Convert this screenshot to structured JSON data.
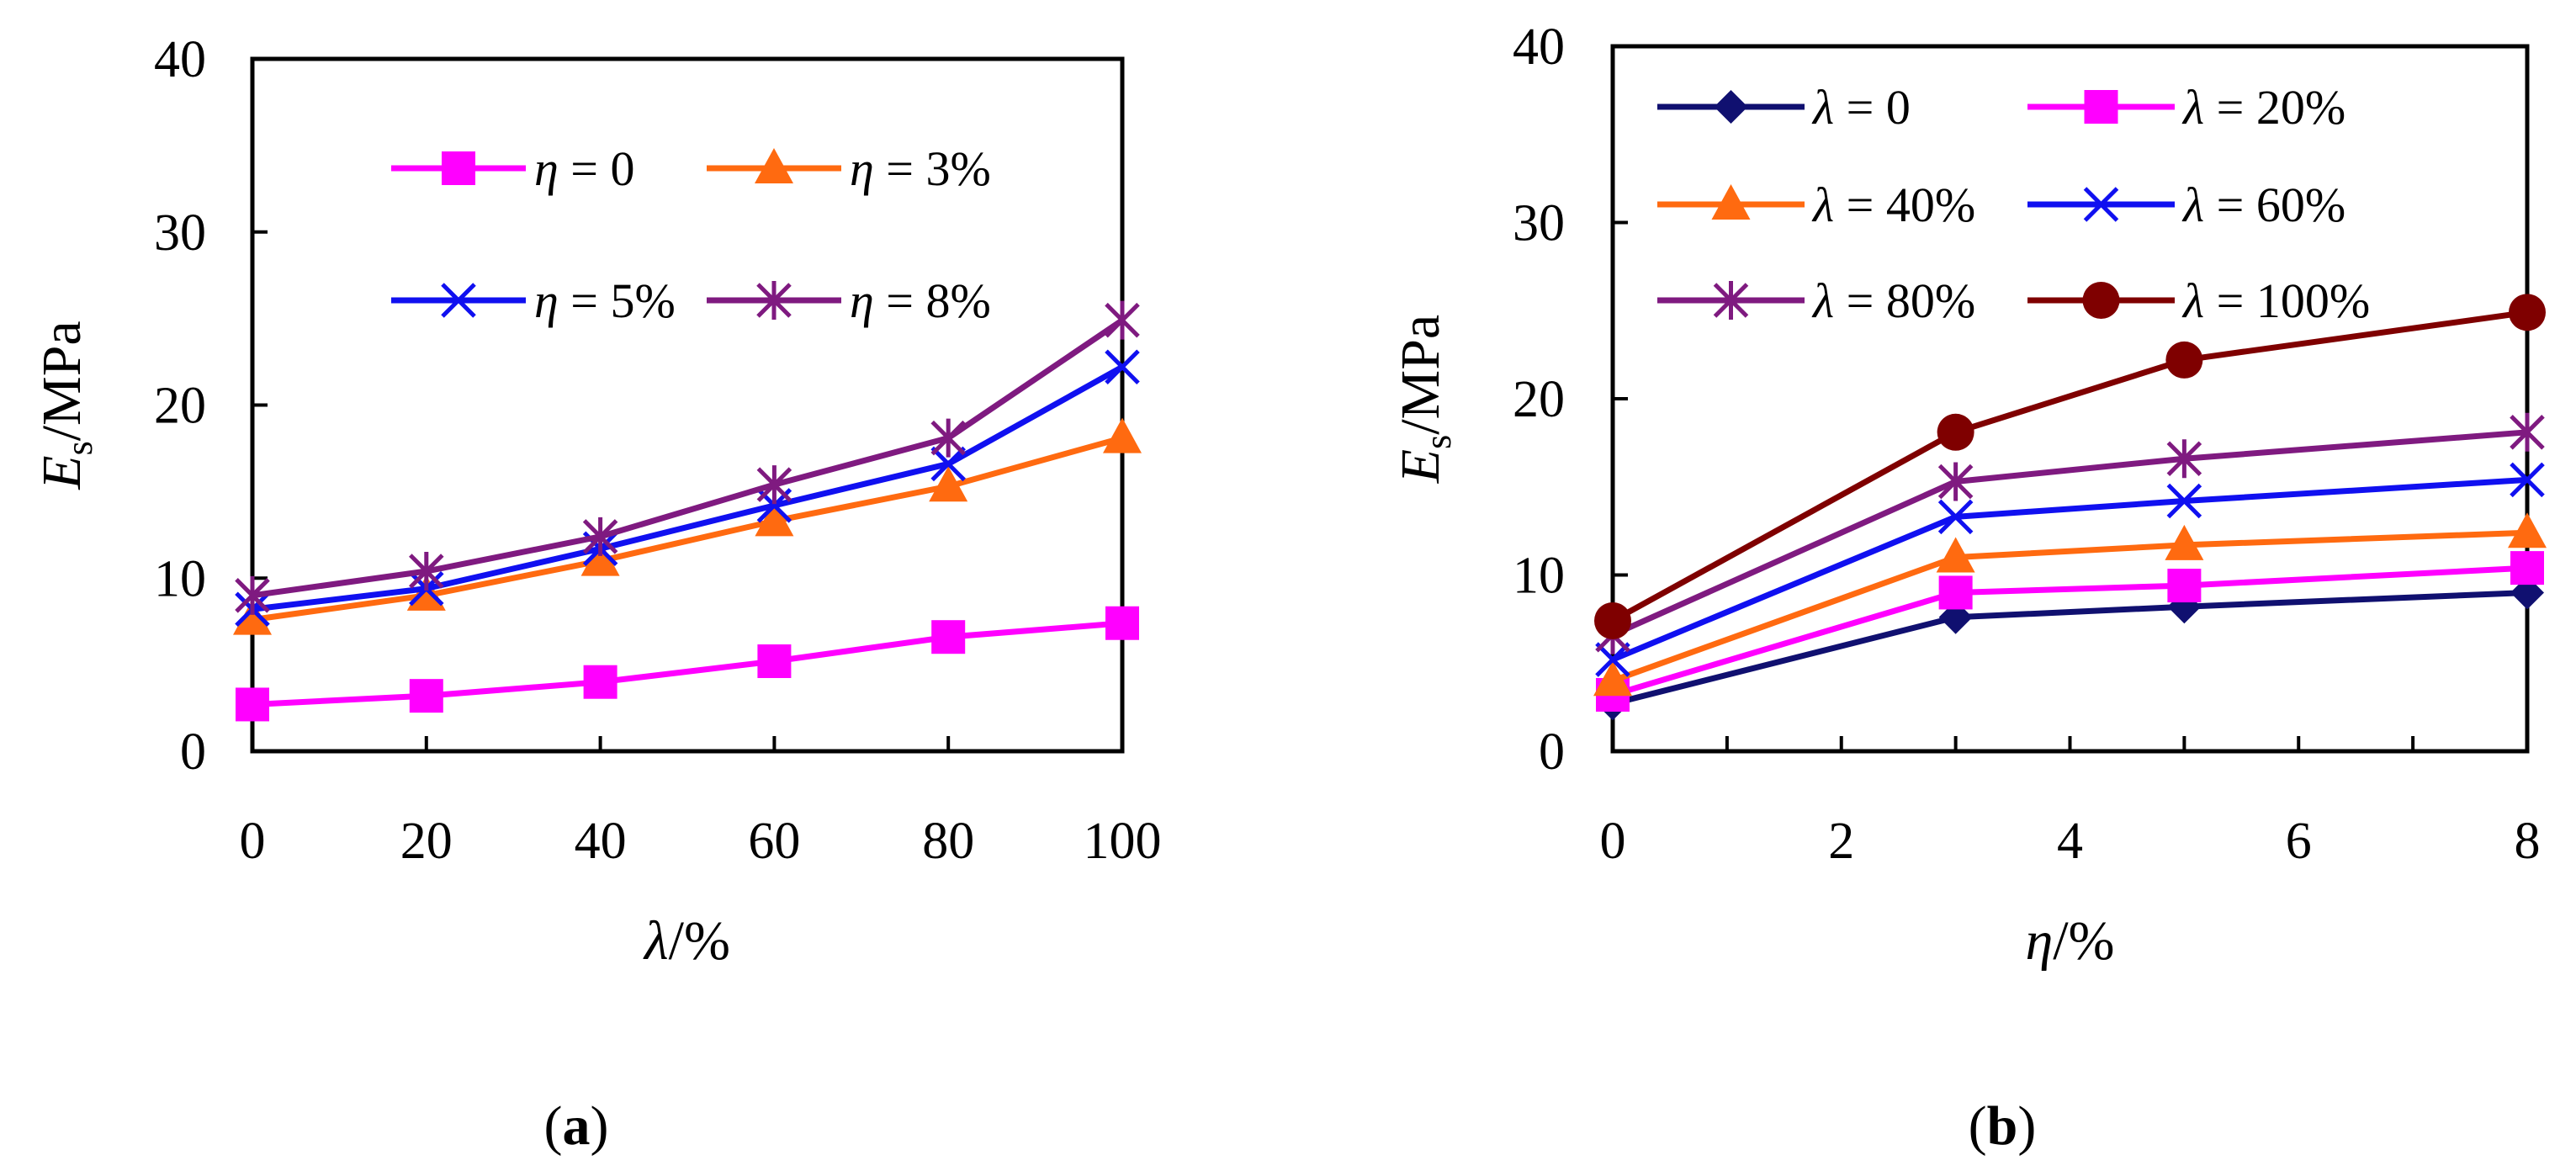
{
  "chart_data": [
    {
      "type": "line",
      "panel_label": "a",
      "title": "",
      "xlabel": "λ/%",
      "ylabel_main": "E",
      "ylabel_sub": "s",
      "ylabel_rest": "/MPa",
      "x": [
        0,
        20,
        40,
        60,
        80,
        100
      ],
      "xlim": [
        0,
        100
      ],
      "ylim": [
        0,
        40
      ],
      "xticks": [
        "0",
        "20",
        "40",
        "60",
        "80",
        "100"
      ],
      "yticks": [
        "0",
        "10",
        "20",
        "30",
        "40"
      ],
      "legend_position": "top-left inside",
      "series": [
        {
          "sym": "η",
          "rest": " = 0",
          "name": "η = 0",
          "color": "#FF00FF",
          "marker": "square",
          "values": [
            2.7,
            3.2,
            4.0,
            5.2,
            6.6,
            7.4
          ]
        },
        {
          "sym": "η",
          "rest": " = 3%",
          "name": "η = 3%",
          "color": "#FF6A10",
          "marker": "triangle",
          "values": [
            7.6,
            9.0,
            11.0,
            13.3,
            15.3,
            18.1
          ]
        },
        {
          "sym": "η",
          "rest": " = 5%",
          "name": "η = 5%",
          "color": "#1010F0",
          "marker": "x",
          "values": [
            8.2,
            9.4,
            11.7,
            14.2,
            16.6,
            22.2
          ]
        },
        {
          "sym": "η",
          "rest": " = 8%",
          "name": "η = 8%",
          "color": "#7F1A80",
          "marker": "star",
          "values": [
            9.0,
            10.4,
            12.4,
            15.4,
            18.1,
            24.9
          ]
        }
      ]
    },
    {
      "type": "line",
      "panel_label": "b",
      "title": "",
      "xlabel": "η/%",
      "ylabel_main": "E",
      "ylabel_sub": "s",
      "ylabel_rest": "/MPa",
      "x": [
        0,
        3,
        5,
        8
      ],
      "xlim": [
        0,
        8
      ],
      "ylim": [
        0,
        40
      ],
      "xticks": [
        "0",
        "2",
        "4",
        "6",
        "8"
      ],
      "yticks": [
        "0",
        "10",
        "20",
        "30",
        "40"
      ],
      "legend_position": "top-left inside",
      "series": [
        {
          "sym": "λ",
          "rest": " = 0",
          "name": "λ = 0",
          "color": "#101070",
          "marker": "diamond",
          "values": [
            2.7,
            7.6,
            8.2,
            9.0
          ]
        },
        {
          "sym": "λ",
          "rest": " = 20%",
          "name": "λ = 20%",
          "color": "#FF00FF",
          "marker": "square",
          "values": [
            3.2,
            9.0,
            9.4,
            10.4
          ]
        },
        {
          "sym": "λ",
          "rest": " = 40%",
          "name": "λ = 40%",
          "color": "#FF6A10",
          "marker": "triangle",
          "values": [
            4.0,
            11.0,
            11.7,
            12.4
          ]
        },
        {
          "sym": "λ",
          "rest": " = 60%",
          "name": "λ = 60%",
          "color": "#1010F0",
          "marker": "x",
          "values": [
            5.2,
            13.3,
            14.2,
            15.4
          ]
        },
        {
          "sym": "λ",
          "rest": " = 80%",
          "name": "λ = 80%",
          "color": "#7F1A80",
          "marker": "star",
          "values": [
            6.6,
            15.3,
            16.6,
            18.1
          ]
        },
        {
          "sym": "λ",
          "rest": " = 100%",
          "name": "λ = 100%",
          "color": "#7F0000",
          "marker": "circle",
          "values": [
            7.4,
            18.1,
            22.2,
            24.9
          ]
        }
      ]
    }
  ]
}
